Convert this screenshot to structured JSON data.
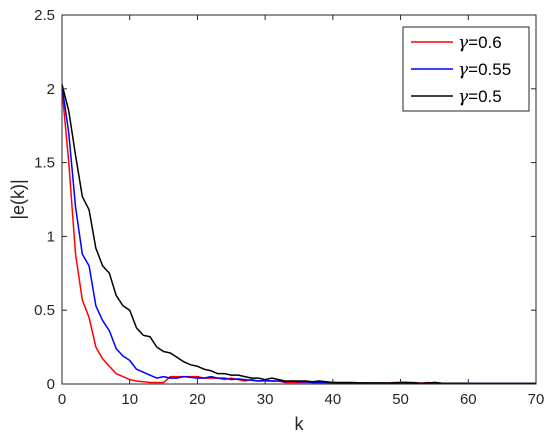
{
  "chart_data": {
    "type": "line",
    "title": "",
    "xlabel": "k",
    "ylabel": "|e(k)|",
    "xlim": [
      0,
      70
    ],
    "ylim": [
      0,
      2.5
    ],
    "xticks": [
      0,
      10,
      20,
      30,
      40,
      50,
      60,
      70
    ],
    "xtick_labels": [
      "0",
      "10",
      "20",
      "30",
      "40",
      "50",
      "60",
      "70"
    ],
    "yticks": [
      0,
      0.5,
      1,
      1.5,
      2,
      2.5
    ],
    "ytick_labels": [
      "0",
      "0.5",
      "1",
      "1.5",
      "2",
      "2.5"
    ],
    "grid": false,
    "legend_position": "top-right",
    "series": [
      {
        "name": "γ=0.6",
        "symbol": "γ",
        "value": "=0.6",
        "color": "#ff0000",
        "x": [
          0,
          1,
          2,
          3,
          4,
          5,
          6,
          7,
          8,
          9,
          10,
          11,
          12,
          13,
          14,
          15,
          16,
          17,
          18,
          19,
          20,
          21,
          22,
          23,
          24,
          25,
          26,
          27,
          28,
          29,
          30,
          31,
          32,
          33,
          34,
          35,
          36,
          37,
          38,
          39,
          40,
          41,
          42,
          43,
          44,
          45,
          46,
          47,
          48,
          49,
          50,
          51,
          52,
          53,
          54,
          55,
          56,
          57,
          58,
          59,
          60,
          61,
          62,
          63,
          64,
          65,
          66,
          67,
          68,
          69,
          70
        ],
        "y": [
          2.0,
          1.5,
          0.88,
          0.57,
          0.45,
          0.25,
          0.17,
          0.12,
          0.07,
          0.05,
          0.03,
          0.02,
          0.015,
          0.01,
          0.01,
          0.01,
          0.05,
          0.05,
          0.05,
          0.05,
          0.05,
          0.04,
          0.04,
          0.04,
          0.03,
          0.04,
          0.03,
          0.02,
          0.03,
          0.02,
          0.02,
          0.02,
          0.02,
          0.01,
          0.01,
          0.01,
          0.01,
          0.01,
          0.01,
          0.01,
          0.005,
          0.005,
          0.005,
          0.005,
          0.005,
          0.005,
          0.005,
          0.005,
          0.005,
          0.01,
          0.01,
          0.01,
          0.01,
          0.005,
          0.01,
          0.005,
          0.005,
          0.005,
          0.005,
          0.005,
          0.002,
          0.002,
          0.002,
          0.002,
          0.002,
          0.002,
          0.002,
          0.002,
          0.002,
          0.002,
          0.002
        ]
      },
      {
        "name": "γ=0.55",
        "symbol": "γ",
        "value": "=0.55",
        "color": "#0000ff",
        "x": [
          0,
          1,
          2,
          3,
          4,
          5,
          6,
          7,
          8,
          9,
          10,
          11,
          12,
          13,
          14,
          15,
          16,
          17,
          18,
          19,
          20,
          21,
          22,
          23,
          24,
          25,
          26,
          27,
          28,
          29,
          30,
          31,
          32,
          33,
          34,
          35,
          36,
          37,
          38,
          39,
          40,
          41,
          42,
          43,
          44,
          45,
          46,
          47,
          48,
          49,
          50,
          51,
          52,
          53,
          54,
          55,
          56,
          57,
          58,
          59,
          60,
          61,
          62,
          63,
          64,
          65,
          66,
          67,
          68,
          69,
          70
        ],
        "y": [
          2.02,
          1.7,
          1.2,
          0.88,
          0.8,
          0.53,
          0.43,
          0.36,
          0.24,
          0.19,
          0.16,
          0.1,
          0.08,
          0.06,
          0.04,
          0.05,
          0.04,
          0.04,
          0.05,
          0.045,
          0.04,
          0.04,
          0.05,
          0.04,
          0.04,
          0.03,
          0.035,
          0.03,
          0.025,
          0.02,
          0.025,
          0.02,
          0.02,
          0.015,
          0.02,
          0.015,
          0.015,
          0.01,
          0.01,
          0.01,
          0.01,
          0.008,
          0.008,
          0.008,
          0.007,
          0.007,
          0.006,
          0.006,
          0.006,
          0.006,
          0.01,
          0.008,
          0.006,
          0.005,
          0.005,
          0.01,
          0.005,
          0.005,
          0.004,
          0.004,
          0.004,
          0.003,
          0.003,
          0.003,
          0.003,
          0.003,
          0.003,
          0.003,
          0.003,
          0.003,
          0.003
        ]
      },
      {
        "name": "γ=0.5",
        "symbol": "γ",
        "value": "=0.5",
        "color": "#000000",
        "x": [
          0,
          1,
          2,
          3,
          4,
          5,
          6,
          7,
          8,
          9,
          10,
          11,
          12,
          13,
          14,
          15,
          16,
          17,
          18,
          19,
          20,
          21,
          22,
          23,
          24,
          25,
          26,
          27,
          28,
          29,
          30,
          31,
          32,
          33,
          34,
          35,
          36,
          37,
          38,
          39,
          40,
          41,
          42,
          43,
          44,
          45,
          46,
          47,
          48,
          49,
          50,
          51,
          52,
          53,
          54,
          55,
          56,
          57,
          58,
          59,
          60,
          61,
          62,
          63,
          64,
          65,
          66,
          67,
          68,
          69,
          70
        ],
        "y": [
          2.03,
          1.85,
          1.55,
          1.27,
          1.18,
          0.92,
          0.8,
          0.75,
          0.6,
          0.53,
          0.5,
          0.38,
          0.33,
          0.32,
          0.25,
          0.22,
          0.21,
          0.18,
          0.15,
          0.13,
          0.12,
          0.1,
          0.09,
          0.07,
          0.07,
          0.06,
          0.06,
          0.05,
          0.04,
          0.04,
          0.03,
          0.04,
          0.03,
          0.02,
          0.02,
          0.02,
          0.02,
          0.015,
          0.02,
          0.015,
          0.01,
          0.01,
          0.01,
          0.01,
          0.008,
          0.008,
          0.008,
          0.008,
          0.007,
          0.007,
          0.01,
          0.01,
          0.008,
          0.006,
          0.006,
          0.01,
          0.006,
          0.005,
          0.005,
          0.005,
          0.004,
          0.004,
          0.004,
          0.004,
          0.004,
          0.004,
          0.004,
          0.004,
          0.004,
          0.004,
          0.004
        ]
      }
    ]
  }
}
